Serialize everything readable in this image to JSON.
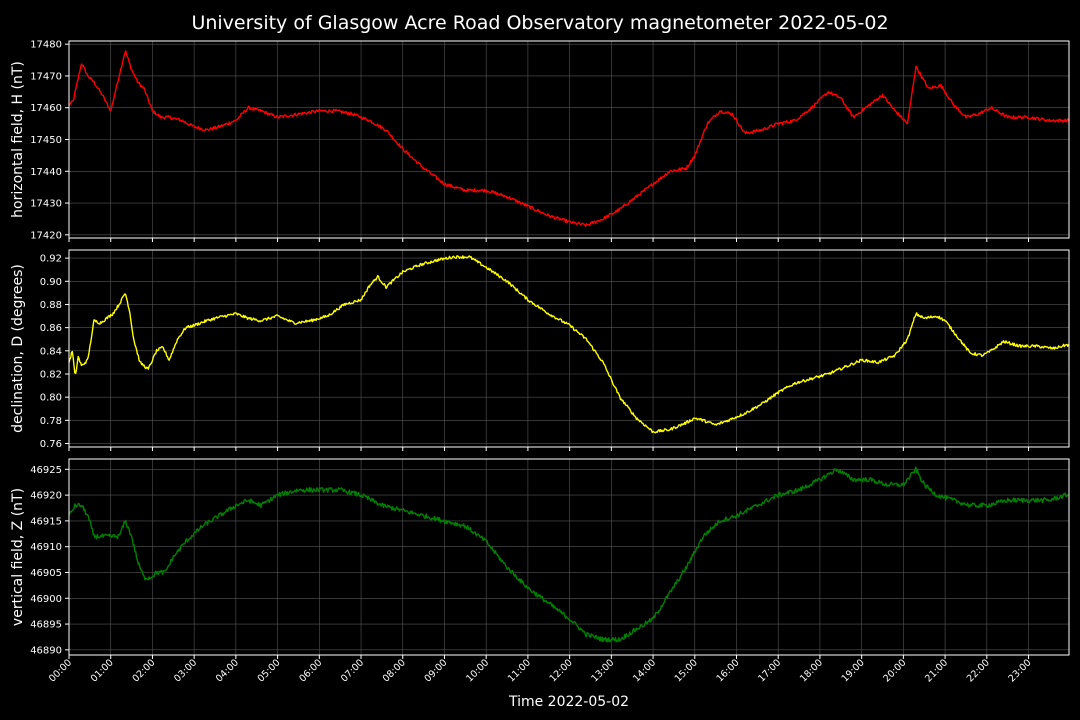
{
  "title": "University of Glasgow Acre Road Observatory magnetometer 2022-05-02",
  "xlabel": "Time 2022-05-02",
  "x_ticks": [
    "00:00",
    "01:00",
    "02:00",
    "03:00",
    "04:00",
    "05:00",
    "06:00",
    "07:00",
    "08:00",
    "09:00",
    "10:00",
    "11:00",
    "12:00",
    "13:00",
    "14:00",
    "15:00",
    "16:00",
    "17:00",
    "18:00",
    "19:00",
    "20:00",
    "21:00",
    "22:00",
    "23:00"
  ],
  "colors": {
    "background": "#000000",
    "grid": "#555555",
    "axes": "#ffffff"
  },
  "chart_data": [
    {
      "type": "line",
      "ylabel": "horizontal field, H (nT)",
      "ylim": [
        17419,
        17481
      ],
      "yticks": [
        17420,
        17430,
        17440,
        17450,
        17460,
        17470,
        17480
      ],
      "grid": true,
      "series": [
        {
          "color": "#ff0000",
          "x_hours": [
            0,
            0.1,
            0.2,
            0.3,
            0.45,
            0.6,
            0.8,
            1.0,
            1.2,
            1.35,
            1.5,
            1.65,
            1.8,
            2.0,
            2.2,
            2.4,
            2.7,
            3.0,
            3.3,
            3.6,
            4.0,
            4.3,
            4.6,
            5.0,
            5.5,
            6.0,
            6.4,
            6.8,
            7.2,
            7.6,
            8.0,
            8.5,
            9.0,
            9.5,
            10.0,
            10.5,
            11.0,
            11.5,
            12.0,
            12.4,
            12.8,
            13.2,
            13.6,
            14.0,
            14.4,
            14.8,
            15.0,
            15.3,
            15.6,
            15.9,
            16.2,
            16.6,
            17.0,
            17.4,
            17.8,
            18.2,
            18.5,
            18.8,
            19.1,
            19.5,
            19.8,
            20.1,
            20.3,
            20.6,
            20.9,
            21.2,
            21.5,
            21.8,
            22.1,
            22.5,
            23.0,
            23.5,
            23.9
          ],
          "y": [
            17461,
            17462,
            17468,
            17474,
            17470,
            17468,
            17464,
            17459,
            17470,
            17478,
            17472,
            17468,
            17466,
            17459,
            17457,
            17457,
            17456,
            17454,
            17453,
            17454,
            17456,
            17460,
            17459,
            17457,
            17458,
            17459,
            17459,
            17458,
            17456,
            17453,
            17447,
            17441,
            17436,
            17434,
            17434,
            17432,
            17429,
            17426,
            17424,
            17423,
            17425,
            17428,
            17432,
            17436,
            17440,
            17441,
            17445,
            17455,
            17459,
            17458,
            17452,
            17453,
            17455,
            17456,
            17460,
            17465,
            17463,
            17457,
            17460,
            17464,
            17459,
            17455,
            17473,
            17466,
            17467,
            17461,
            17457,
            17458,
            17460,
            17457,
            17457,
            17456,
            17456
          ]
        }
      ]
    },
    {
      "type": "line",
      "ylabel": "declination, D (degrees)",
      "ylim": [
        0.757,
        0.927
      ],
      "yticks": [
        0.76,
        0.78,
        0.8,
        0.82,
        0.84,
        0.86,
        0.88,
        0.9,
        0.92
      ],
      "grid": true,
      "series": [
        {
          "color": "#ffff00",
          "x_hours": [
            0,
            0.08,
            0.15,
            0.22,
            0.3,
            0.45,
            0.6,
            0.75,
            0.9,
            1.05,
            1.2,
            1.35,
            1.45,
            1.55,
            1.7,
            1.9,
            2.1,
            2.25,
            2.4,
            2.6,
            2.8,
            3.0,
            3.3,
            3.6,
            4.0,
            4.3,
            4.6,
            5.0,
            5.4,
            5.8,
            6.2,
            6.6,
            7.0,
            7.2,
            7.4,
            7.6,
            8.0,
            8.4,
            8.8,
            9.2,
            9.6,
            10.0,
            10.5,
            11.0,
            11.5,
            12.0,
            12.4,
            12.8,
            13.2,
            13.6,
            14.0,
            14.4,
            14.8,
            15.0,
            15.2,
            15.5,
            15.8,
            16.2,
            16.6,
            17.0,
            17.4,
            17.8,
            18.2,
            18.6,
            19.0,
            19.4,
            19.8,
            20.1,
            20.3,
            20.5,
            20.8,
            21.0,
            21.3,
            21.6,
            21.9,
            22.1,
            22.4,
            22.8,
            23.2,
            23.6,
            23.9
          ],
          "y": [
            0.83,
            0.84,
            0.817,
            0.835,
            0.827,
            0.832,
            0.866,
            0.864,
            0.868,
            0.872,
            0.88,
            0.89,
            0.875,
            0.85,
            0.83,
            0.824,
            0.84,
            0.843,
            0.832,
            0.85,
            0.86,
            0.862,
            0.866,
            0.869,
            0.872,
            0.868,
            0.866,
            0.87,
            0.864,
            0.866,
            0.87,
            0.88,
            0.884,
            0.896,
            0.904,
            0.895,
            0.908,
            0.914,
            0.918,
            0.921,
            0.921,
            0.912,
            0.9,
            0.884,
            0.872,
            0.862,
            0.85,
            0.83,
            0.8,
            0.782,
            0.77,
            0.772,
            0.778,
            0.782,
            0.78,
            0.776,
            0.78,
            0.786,
            0.794,
            0.804,
            0.812,
            0.816,
            0.82,
            0.826,
            0.832,
            0.83,
            0.836,
            0.85,
            0.872,
            0.868,
            0.87,
            0.866,
            0.852,
            0.838,
            0.836,
            0.84,
            0.848,
            0.844,
            0.844,
            0.842,
            0.845
          ]
        }
      ]
    },
    {
      "type": "line",
      "ylabel": "vertical field, Z (nT)",
      "ylim": [
        46889,
        46927
      ],
      "yticks": [
        46890,
        46895,
        46900,
        46905,
        46910,
        46915,
        46920,
        46925
      ],
      "grid": true,
      "series": [
        {
          "color": "#008000",
          "x_hours": [
            0,
            0.15,
            0.3,
            0.45,
            0.6,
            0.8,
            1.0,
            1.2,
            1.35,
            1.5,
            1.65,
            1.8,
            1.95,
            2.1,
            2.3,
            2.5,
            2.8,
            3.2,
            3.6,
            4.0,
            4.3,
            4.6,
            5.0,
            5.5,
            6.0,
            6.5,
            7.0,
            7.5,
            8.0,
            8.5,
            9.0,
            9.5,
            10.0,
            10.5,
            11.0,
            11.5,
            12.0,
            12.4,
            12.8,
            13.2,
            13.6,
            14.0,
            14.4,
            14.8,
            15.2,
            15.6,
            16.0,
            16.5,
            17.0,
            17.5,
            18.0,
            18.4,
            18.8,
            19.2,
            19.6,
            20.0,
            20.3,
            20.5,
            20.8,
            21.2,
            21.6,
            22.0,
            22.5,
            23.0,
            23.5,
            23.9
          ],
          "y": [
            46916,
            46918,
            46918,
            46916,
            46912,
            46912,
            46912,
            46912,
            46915,
            46912,
            46907,
            46904,
            46904,
            46905,
            46905,
            46908,
            46911,
            46914,
            46916,
            46918,
            46919,
            46918,
            46920,
            46921,
            46921,
            46921,
            46920,
            46918,
            46917,
            46916,
            46915,
            46914,
            46911,
            46906,
            46902,
            46899,
            46896,
            46893,
            46892,
            46892,
            46894,
            46896,
            46901,
            46906,
            46912,
            46915,
            46916,
            46918,
            46920,
            46921,
            46923,
            46925,
            46923,
            46923,
            46922,
            46922,
            46925,
            46922,
            46920,
            46919,
            46918,
            46918,
            46919,
            46919,
            46919,
            46920
          ]
        }
      ]
    }
  ]
}
